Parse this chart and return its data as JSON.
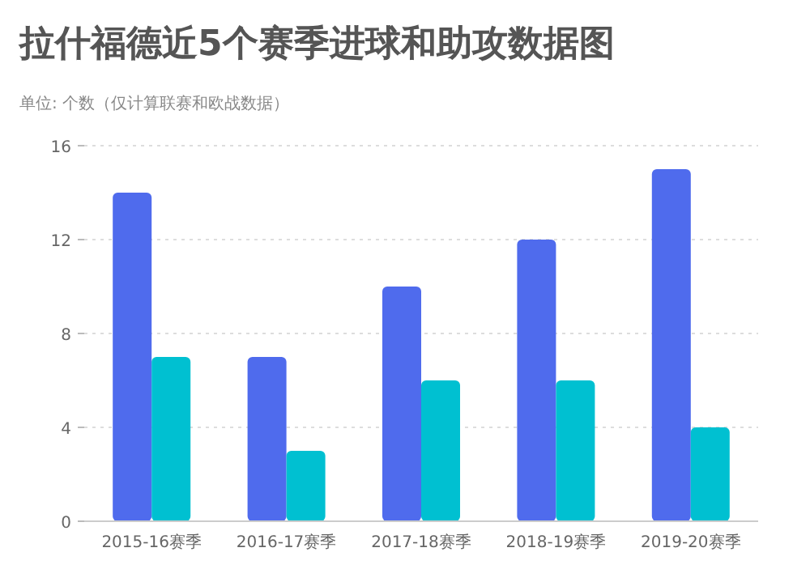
{
  "chart_data": {
    "type": "bar",
    "title": "拉什福德近5个赛季进球和助攻数据图",
    "subtitle": "单位: 个数（仅计算联赛和欧战数据）",
    "categories": [
      "2015-16赛季",
      "2016-17赛季",
      "2017-18赛季",
      "2018-19赛季",
      "2019-20赛季"
    ],
    "series": [
      {
        "color": "#4f6bed",
        "values": [
          14,
          7,
          10,
          12,
          15
        ]
      },
      {
        "color": "#00c0d1",
        "values": [
          7,
          3,
          6,
          6,
          4
        ]
      }
    ],
    "ylim": [
      0,
      16
    ],
    "yticks": [
      0,
      4,
      8,
      12,
      16
    ],
    "grid": "y"
  }
}
